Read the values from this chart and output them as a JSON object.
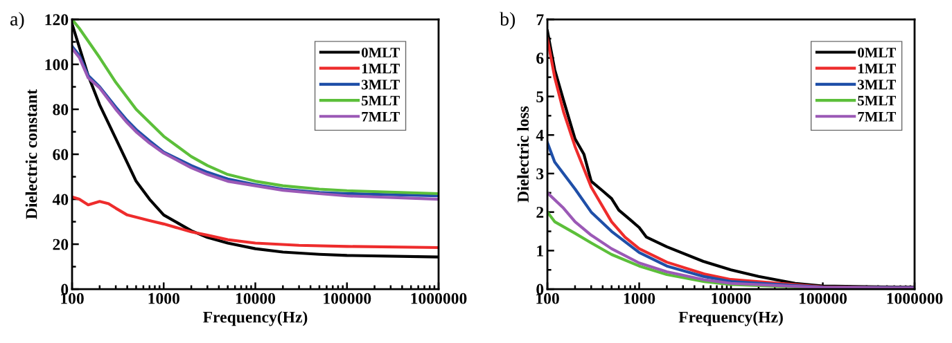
{
  "chart_data": [
    {
      "type": "line",
      "xlabel": "Frequency(Hz)",
      "ylabel": "Dielectric constant",
      "annotations": [
        "a)"
      ],
      "log": "x",
      "xlim": [
        100,
        1000000
      ],
      "xticks": [
        100,
        1000,
        10000,
        100000,
        1000000
      ],
      "ylim": [
        0,
        120
      ],
      "yticks": [
        0,
        20,
        40,
        60,
        80,
        100,
        120
      ],
      "legend": "top right",
      "grid": false,
      "series": [
        {
          "name": "0MLT",
          "color": "#000000",
          "x": [
            100,
            150,
            200,
            300,
            500,
            700,
            1000,
            2000,
            3000,
            5000,
            10000,
            20000,
            50000,
            100000,
            1000000
          ],
          "values": [
            118,
            95,
            82,
            67,
            48,
            40,
            33,
            26,
            23,
            20.5,
            18,
            16.5,
            15.5,
            15,
            14.3
          ]
        },
        {
          "name": "1MLT",
          "color": "#ee2c2c",
          "x": [
            100,
            120,
            150,
            200,
            250,
            300,
            400,
            700,
            1000,
            2000,
            3000,
            5000,
            10000,
            30000,
            100000,
            1000000
          ],
          "values": [
            41,
            40,
            37.5,
            39,
            38,
            36,
            33,
            30.5,
            29,
            25.5,
            24,
            22,
            20.5,
            19.5,
            19,
            18.5
          ]
        },
        {
          "name": "3MLT",
          "color": "#1f4fa8",
          "x": [
            100,
            120,
            150,
            200,
            300,
            400,
            500,
            700,
            1000,
            2000,
            3000,
            5000,
            10000,
            20000,
            50000,
            100000,
            1000000
          ],
          "values": [
            108,
            104,
            95,
            90,
            81,
            75,
            71,
            66,
            61,
            55,
            52,
            49,
            46.5,
            44.5,
            43,
            42.5,
            41.5
          ]
        },
        {
          "name": "5MLT",
          "color": "#5cbf3a",
          "x": [
            100,
            120,
            200,
            300,
            500,
            1000,
            2000,
            3000,
            5000,
            10000,
            20000,
            50000,
            100000,
            1000000
          ],
          "values": [
            120,
            116,
            103,
            92,
            80,
            68,
            59,
            55,
            51,
            48,
            46,
            44.5,
            43.8,
            42.5
          ]
        },
        {
          "name": "7MLT",
          "color": "#9b59b6",
          "x": [
            100,
            120,
            150,
            200,
            300,
            400,
            500,
            700,
            1000,
            2000,
            3000,
            5000,
            10000,
            20000,
            50000,
            100000,
            1000000
          ],
          "values": [
            107,
            103,
            94,
            89.5,
            80,
            74,
            70,
            65,
            60.5,
            54,
            51,
            48,
            46,
            44,
            42.5,
            41.5,
            40
          ]
        }
      ]
    },
    {
      "type": "line",
      "xlabel": "Frequency(Hz)",
      "ylabel": "Dielectric loss",
      "annotations": [
        "b)"
      ],
      "log": "x",
      "xlim": [
        100,
        1000000
      ],
      "xticks": [
        100,
        1000,
        10000,
        100000,
        1000000
      ],
      "ylim": [
        0,
        7
      ],
      "yticks": [
        0,
        1,
        2,
        3,
        4,
        5,
        6,
        7
      ],
      "legend": "top right",
      "grid": false,
      "series": [
        {
          "name": "0MLT",
          "color": "#000000",
          "x": [
            100,
            120,
            150,
            200,
            250,
            300,
            400,
            500,
            600,
            800,
            1000,
            1200,
            2000,
            5000,
            10000,
            20000,
            50000,
            100000,
            1000000
          ],
          "values": [
            6.7,
            5.7,
            4.9,
            3.9,
            3.5,
            2.8,
            2.55,
            2.35,
            2.05,
            1.8,
            1.6,
            1.35,
            1.1,
            0.72,
            0.5,
            0.33,
            0.15,
            0.08,
            0.05
          ]
        },
        {
          "name": "1MLT",
          "color": "#ee2c2c",
          "x": [
            100,
            120,
            150,
            200,
            300,
            500,
            700,
            1000,
            2000,
            5000,
            10000,
            100000,
            1000000
          ],
          "values": [
            6.5,
            5.5,
            4.6,
            3.7,
            2.65,
            1.75,
            1.35,
            1.05,
            0.7,
            0.4,
            0.25,
            0.06,
            0.04
          ]
        },
        {
          "name": "3MLT",
          "color": "#1f4fa8",
          "x": [
            100,
            120,
            200,
            300,
            500,
            1000,
            2000,
            5000,
            10000,
            100000,
            1000000
          ],
          "values": [
            3.8,
            3.3,
            2.6,
            2.0,
            1.5,
            0.95,
            0.6,
            0.33,
            0.2,
            0.05,
            0.04
          ]
        },
        {
          "name": "5MLT",
          "color": "#5cbf3a",
          "x": [
            100,
            120,
            200,
            300,
            500,
            1000,
            2000,
            5000,
            10000,
            100000,
            1000000
          ],
          "values": [
            2.0,
            1.75,
            1.45,
            1.2,
            0.9,
            0.6,
            0.38,
            0.2,
            0.12,
            0.03,
            0.02
          ]
        },
        {
          "name": "7MLT",
          "color": "#9b59b6",
          "x": [
            100,
            150,
            200,
            300,
            500,
            1000,
            2000,
            5000,
            10000,
            100000,
            1000000
          ],
          "values": [
            2.5,
            2.1,
            1.75,
            1.4,
            1.05,
            0.68,
            0.45,
            0.25,
            0.15,
            0.04,
            0.03
          ]
        }
      ]
    }
  ]
}
